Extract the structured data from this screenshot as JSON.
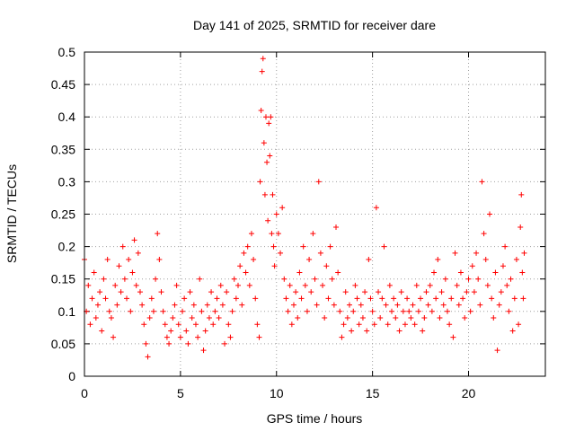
{
  "chart_data": {
    "type": "scatter",
    "title": "Day 141 of 2025, SRMTID for receiver dare",
    "xlabel": "GPS time / hours",
    "ylabel": "SRMTID / TECUs",
    "xlim": [
      0,
      24
    ],
    "ylim": [
      0,
      0.5
    ],
    "x_ticks": [
      0,
      5,
      10,
      15,
      20
    ],
    "y_ticks": [
      0,
      0.05,
      0.1,
      0.15,
      0.2,
      0.25,
      0.3,
      0.35,
      0.4,
      0.45,
      0.5
    ],
    "x_tick_labels": [
      "0",
      "5",
      "10",
      "15",
      "20"
    ],
    "y_tick_labels": [
      "0",
      "0.05",
      "0.1",
      "0.15",
      "0.2",
      "0.25",
      "0.3",
      "0.35",
      "0.4",
      "0.45",
      "0.5"
    ],
    "grid": true,
    "marker": "+",
    "color": "#ff0000",
    "series": [
      {
        "name": "SRMTID",
        "points": [
          [
            0.0,
            0.18
          ],
          [
            0.1,
            0.1
          ],
          [
            0.2,
            0.14
          ],
          [
            0.3,
            0.08
          ],
          [
            0.4,
            0.12
          ],
          [
            0.5,
            0.16
          ],
          [
            0.6,
            0.09
          ],
          [
            0.7,
            0.11
          ],
          [
            0.8,
            0.13
          ],
          [
            0.9,
            0.07
          ],
          [
            1.0,
            0.15
          ],
          [
            1.1,
            0.12
          ],
          [
            1.2,
            0.18
          ],
          [
            1.3,
            0.1
          ],
          [
            1.4,
            0.09
          ],
          [
            1.5,
            0.06
          ],
          [
            1.6,
            0.14
          ],
          [
            1.7,
            0.11
          ],
          [
            1.8,
            0.17
          ],
          [
            1.9,
            0.13
          ],
          [
            2.0,
            0.2
          ],
          [
            2.1,
            0.15
          ],
          [
            2.2,
            0.12
          ],
          [
            2.3,
            0.18
          ],
          [
            2.4,
            0.1
          ],
          [
            2.5,
            0.16
          ],
          [
            2.6,
            0.21
          ],
          [
            2.7,
            0.14
          ],
          [
            2.8,
            0.19
          ],
          [
            2.9,
            0.13
          ],
          [
            3.0,
            0.11
          ],
          [
            3.1,
            0.08
          ],
          [
            3.2,
            0.05
          ],
          [
            3.3,
            0.03
          ],
          [
            3.4,
            0.09
          ],
          [
            3.5,
            0.12
          ],
          [
            3.6,
            0.1
          ],
          [
            3.7,
            0.15
          ],
          [
            3.8,
            0.22
          ],
          [
            3.9,
            0.18
          ],
          [
            4.0,
            0.13
          ],
          [
            4.1,
            0.1
          ],
          [
            4.2,
            0.08
          ],
          [
            4.3,
            0.06
          ],
          [
            4.4,
            0.05
          ],
          [
            4.5,
            0.07
          ],
          [
            4.6,
            0.09
          ],
          [
            4.7,
            0.11
          ],
          [
            4.8,
            0.14
          ],
          [
            4.9,
            0.08
          ],
          [
            5.0,
            0.06
          ],
          [
            5.1,
            0.1
          ],
          [
            5.2,
            0.12
          ],
          [
            5.3,
            0.07
          ],
          [
            5.4,
            0.05
          ],
          [
            5.5,
            0.13
          ],
          [
            5.6,
            0.09
          ],
          [
            5.7,
            0.11
          ],
          [
            5.8,
            0.08
          ],
          [
            5.9,
            0.06
          ],
          [
            6.0,
            0.15
          ],
          [
            6.1,
            0.1
          ],
          [
            6.2,
            0.04
          ],
          [
            6.3,
            0.07
          ],
          [
            6.4,
            0.11
          ],
          [
            6.5,
            0.09
          ],
          [
            6.6,
            0.13
          ],
          [
            6.7,
            0.08
          ],
          [
            6.8,
            0.1
          ],
          [
            6.9,
            0.12
          ],
          [
            7.0,
            0.09
          ],
          [
            7.1,
            0.14
          ],
          [
            7.2,
            0.11
          ],
          [
            7.3,
            0.05
          ],
          [
            7.4,
            0.13
          ],
          [
            7.5,
            0.08
          ],
          [
            7.6,
            0.06
          ],
          [
            7.7,
            0.1
          ],
          [
            7.8,
            0.15
          ],
          [
            7.9,
            0.12
          ],
          [
            8.0,
            0.14
          ],
          [
            8.1,
            0.17
          ],
          [
            8.2,
            0.11
          ],
          [
            8.3,
            0.19
          ],
          [
            8.4,
            0.16
          ],
          [
            8.5,
            0.2
          ],
          [
            8.6,
            0.14
          ],
          [
            8.7,
            0.22
          ],
          [
            8.8,
            0.18
          ],
          [
            8.9,
            0.12
          ],
          [
            9.0,
            0.08
          ],
          [
            9.1,
            0.06
          ],
          [
            9.15,
            0.3
          ],
          [
            9.2,
            0.41
          ],
          [
            9.25,
            0.47
          ],
          [
            9.3,
            0.49
          ],
          [
            9.35,
            0.36
          ],
          [
            9.4,
            0.28
          ],
          [
            9.45,
            0.4
          ],
          [
            9.5,
            0.33
          ],
          [
            9.55,
            0.24
          ],
          [
            9.6,
            0.39
          ],
          [
            9.65,
            0.34
          ],
          [
            9.7,
            0.4
          ],
          [
            9.75,
            0.22
          ],
          [
            9.8,
            0.28
          ],
          [
            9.85,
            0.2
          ],
          [
            9.9,
            0.17
          ],
          [
            10.0,
            0.25
          ],
          [
            10.1,
            0.22
          ],
          [
            10.2,
            0.19
          ],
          [
            10.3,
            0.26
          ],
          [
            10.4,
            0.15
          ],
          [
            10.5,
            0.12
          ],
          [
            10.6,
            0.1
          ],
          [
            10.7,
            0.14
          ],
          [
            10.8,
            0.08
          ],
          [
            10.9,
            0.11
          ],
          [
            11.0,
            0.13
          ],
          [
            11.1,
            0.09
          ],
          [
            11.2,
            0.16
          ],
          [
            11.3,
            0.12
          ],
          [
            11.4,
            0.2
          ],
          [
            11.5,
            0.14
          ],
          [
            11.6,
            0.1
          ],
          [
            11.7,
            0.18
          ],
          [
            11.8,
            0.13
          ],
          [
            11.9,
            0.22
          ],
          [
            12.0,
            0.15
          ],
          [
            12.1,
            0.11
          ],
          [
            12.2,
            0.3
          ],
          [
            12.3,
            0.19
          ],
          [
            12.4,
            0.14
          ],
          [
            12.5,
            0.09
          ],
          [
            12.6,
            0.17
          ],
          [
            12.7,
            0.12
          ],
          [
            12.8,
            0.2
          ],
          [
            12.9,
            0.15
          ],
          [
            13.0,
            0.11
          ],
          [
            13.1,
            0.23
          ],
          [
            13.2,
            0.16
          ],
          [
            13.3,
            0.1
          ],
          [
            13.4,
            0.06
          ],
          [
            13.5,
            0.08
          ],
          [
            13.6,
            0.13
          ],
          [
            13.7,
            0.09
          ],
          [
            13.8,
            0.11
          ],
          [
            13.9,
            0.07
          ],
          [
            14.0,
            0.1
          ],
          [
            14.1,
            0.14
          ],
          [
            14.2,
            0.12
          ],
          [
            14.3,
            0.08
          ],
          [
            14.4,
            0.11
          ],
          [
            14.5,
            0.09
          ],
          [
            14.6,
            0.13
          ],
          [
            14.7,
            0.07
          ],
          [
            14.8,
            0.18
          ],
          [
            14.9,
            0.12
          ],
          [
            15.0,
            0.1
          ],
          [
            15.1,
            0.08
          ],
          [
            15.2,
            0.26
          ],
          [
            15.3,
            0.13
          ],
          [
            15.4,
            0.09
          ],
          [
            15.5,
            0.12
          ],
          [
            15.6,
            0.2
          ],
          [
            15.7,
            0.11
          ],
          [
            15.8,
            0.08
          ],
          [
            15.9,
            0.14
          ],
          [
            16.0,
            0.1
          ],
          [
            16.1,
            0.12
          ],
          [
            16.2,
            0.09
          ],
          [
            16.3,
            0.11
          ],
          [
            16.4,
            0.07
          ],
          [
            16.5,
            0.13
          ],
          [
            16.6,
            0.1
          ],
          [
            16.7,
            0.08
          ],
          [
            16.8,
            0.12
          ],
          [
            16.9,
            0.1
          ],
          [
            17.0,
            0.09
          ],
          [
            17.1,
            0.11
          ],
          [
            17.2,
            0.08
          ],
          [
            17.3,
            0.14
          ],
          [
            17.4,
            0.1
          ],
          [
            17.5,
            0.12
          ],
          [
            17.6,
            0.07
          ],
          [
            17.7,
            0.09
          ],
          [
            17.8,
            0.13
          ],
          [
            17.9,
            0.11
          ],
          [
            18.0,
            0.14
          ],
          [
            18.1,
            0.1
          ],
          [
            18.2,
            0.16
          ],
          [
            18.3,
            0.12
          ],
          [
            18.4,
            0.18
          ],
          [
            18.5,
            0.09
          ],
          [
            18.6,
            0.13
          ],
          [
            18.7,
            0.11
          ],
          [
            18.8,
            0.15
          ],
          [
            18.9,
            0.1
          ],
          [
            19.0,
            0.08
          ],
          [
            19.1,
            0.12
          ],
          [
            19.2,
            0.06
          ],
          [
            19.3,
            0.19
          ],
          [
            19.4,
            0.14
          ],
          [
            19.5,
            0.11
          ],
          [
            19.6,
            0.16
          ],
          [
            19.7,
            0.12
          ],
          [
            19.8,
            0.09
          ],
          [
            19.9,
            0.13
          ],
          [
            20.0,
            0.15
          ],
          [
            20.1,
            0.1
          ],
          [
            20.2,
            0.17
          ],
          [
            20.3,
            0.13
          ],
          [
            20.4,
            0.19
          ],
          [
            20.5,
            0.15
          ],
          [
            20.6,
            0.11
          ],
          [
            20.7,
            0.3
          ],
          [
            20.8,
            0.22
          ],
          [
            20.9,
            0.18
          ],
          [
            21.0,
            0.14
          ],
          [
            21.1,
            0.25
          ],
          [
            21.2,
            0.12
          ],
          [
            21.3,
            0.09
          ],
          [
            21.4,
            0.16
          ],
          [
            21.5,
            0.04
          ],
          [
            21.6,
            0.11
          ],
          [
            21.7,
            0.13
          ],
          [
            21.8,
            0.17
          ],
          [
            21.9,
            0.2
          ],
          [
            22.0,
            0.14
          ],
          [
            22.1,
            0.1
          ],
          [
            22.2,
            0.15
          ],
          [
            22.3,
            0.07
          ],
          [
            22.4,
            0.12
          ],
          [
            22.5,
            0.18
          ],
          [
            22.6,
            0.08
          ],
          [
            22.7,
            0.23
          ],
          [
            22.75,
            0.28
          ],
          [
            22.8,
            0.16
          ],
          [
            22.85,
            0.12
          ],
          [
            22.9,
            0.19
          ]
        ]
      }
    ]
  }
}
